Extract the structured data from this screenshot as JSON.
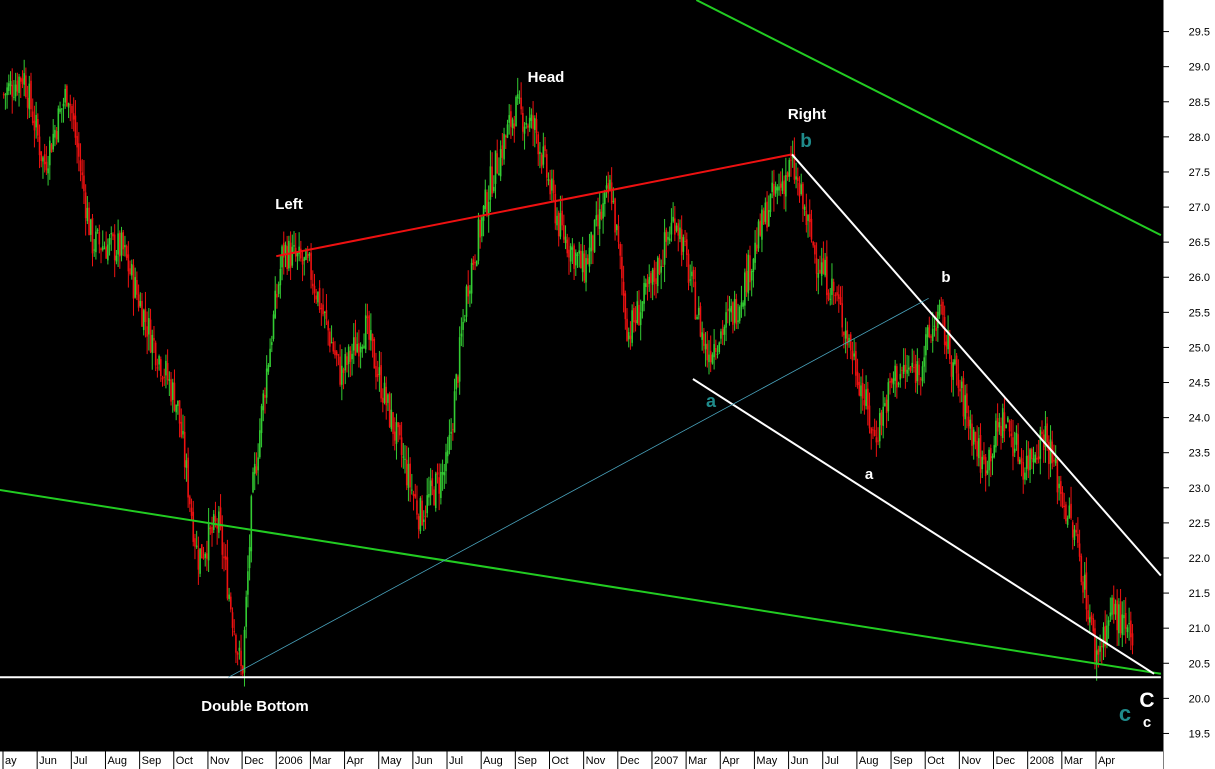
{
  "chart_data": {
    "type": "candlestick",
    "title": "",
    "ylabel": "",
    "ylim": [
      19.25,
      29.95
    ],
    "y_ticks": [
      "29.5",
      "29.0",
      "28.5",
      "28.0",
      "27.5",
      "27.0",
      "26.5",
      "26.0",
      "25.5",
      "25.0",
      "24.5",
      "24.0",
      "23.5",
      "23.0",
      "22.5",
      "22.0",
      "21.5",
      "21.0",
      "20.5",
      "20.0",
      "19.5"
    ],
    "x_ticks": [
      "ay",
      "Jun",
      "Jul",
      "Aug",
      "Sep",
      "Oct",
      "Nov",
      "Dec",
      "2006",
      "Mar",
      "Apr",
      "May",
      "Jun",
      "Jul",
      "Aug",
      "Sep",
      "Oct",
      "Nov",
      "Dec",
      "2007",
      "Mar",
      "Apr",
      "May",
      "Jun",
      "Jul",
      "Aug",
      "Sep",
      "Oct",
      "Nov",
      "Dec",
      "2008",
      "Mar",
      "Apr"
    ],
    "grid": false,
    "price_path": [
      {
        "t": 0,
        "p": 28.6
      },
      {
        "t": 0.6,
        "p": 28.9
      },
      {
        "t": 1.2,
        "p": 27.6
      },
      {
        "t": 1.9,
        "p": 28.7
      },
      {
        "t": 2.6,
        "p": 26.5
      },
      {
        "t": 3.5,
        "p": 26.4
      },
      {
        "t": 4.3,
        "p": 25.2
      },
      {
        "t": 5.1,
        "p": 24.2
      },
      {
        "t": 5.7,
        "p": 22.0
      },
      {
        "t": 6.3,
        "p": 22.5
      },
      {
        "t": 7.0,
        "p": 20.3
      },
      {
        "t": 7.3,
        "p": 22.9
      },
      {
        "t": 7.7,
        "p": 24.6
      },
      {
        "t": 8.2,
        "p": 26.4
      },
      {
        "t": 9.0,
        "p": 26.1
      },
      {
        "t": 9.9,
        "p": 24.6
      },
      {
        "t": 10.6,
        "p": 25.3
      },
      {
        "t": 11.4,
        "p": 23.9
      },
      {
        "t": 12.2,
        "p": 22.6
      },
      {
        "t": 13.0,
        "p": 23.3
      },
      {
        "t": 13.6,
        "p": 25.9
      },
      {
        "t": 14.3,
        "p": 27.4
      },
      {
        "t": 15.0,
        "p": 28.4
      },
      {
        "t": 15.6,
        "p": 28.1
      },
      {
        "t": 16.3,
        "p": 26.7
      },
      {
        "t": 17.0,
        "p": 26.1
      },
      {
        "t": 17.8,
        "p": 27.3
      },
      {
        "t": 18.3,
        "p": 25.2
      },
      {
        "t": 19.0,
        "p": 25.9
      },
      {
        "t": 19.7,
        "p": 26.9
      },
      {
        "t": 20.6,
        "p": 24.9
      },
      {
        "t": 21.5,
        "p": 25.6
      },
      {
        "t": 22.4,
        "p": 27.0
      },
      {
        "t": 23.1,
        "p": 27.6
      },
      {
        "t": 23.8,
        "p": 26.3
      },
      {
        "t": 24.4,
        "p": 25.7
      },
      {
        "t": 25.0,
        "p": 24.7
      },
      {
        "t": 25.5,
        "p": 23.7
      },
      {
        "t": 26.1,
        "p": 24.6
      },
      {
        "t": 26.8,
        "p": 24.7
      },
      {
        "t": 27.4,
        "p": 25.5
      },
      {
        "t": 28.0,
        "p": 24.4
      },
      {
        "t": 28.7,
        "p": 23.3
      },
      {
        "t": 29.3,
        "p": 24.0
      },
      {
        "t": 29.9,
        "p": 23.3
      },
      {
        "t": 30.5,
        "p": 23.8
      },
      {
        "t": 31.0,
        "p": 22.9
      },
      {
        "t": 31.5,
        "p": 22.1
      },
      {
        "t": 32.0,
        "p": 20.6
      },
      {
        "t": 32.5,
        "p": 21.3
      },
      {
        "t": 33.1,
        "p": 20.7
      }
    ],
    "trendlines": [
      {
        "name": "upper-channel",
        "color": "#22cc22",
        "from": {
          "t": 20.3,
          "p": 29.95
        },
        "to": {
          "t": 33.9,
          "p": 26.6
        }
      },
      {
        "name": "lower-channel",
        "color": "#22cc22",
        "from": {
          "t": -0.1,
          "p": 22.97
        },
        "to": {
          "t": 33.9,
          "p": 20.35
        }
      },
      {
        "name": "neckline",
        "color": "#ee1111",
        "from": {
          "t": 8.0,
          "p": 26.3
        },
        "to": {
          "t": 23.1,
          "p": 27.75
        }
      },
      {
        "name": "wedge-top",
        "color": "#ffffff",
        "from": {
          "t": 23.1,
          "p": 27.75
        },
        "to": {
          "t": 33.9,
          "p": 21.75
        }
      },
      {
        "name": "wedge-bottom",
        "color": "#ffffff",
        "from": {
          "t": 20.2,
          "p": 24.55
        },
        "to": {
          "t": 33.7,
          "p": 20.35
        }
      },
      {
        "name": "support",
        "color": "#ffffff",
        "from": {
          "t": -0.1,
          "p": 20.3
        },
        "to": {
          "t": 33.9,
          "p": 20.3
        }
      },
      {
        "name": "thin-trend",
        "color": "#4aa6c0",
        "from": {
          "t": 6.6,
          "p": 20.3
        },
        "to": {
          "t": 27.1,
          "p": 25.7
        }
      }
    ],
    "annotations": {
      "head": "Head",
      "left": "Left",
      "right": "Right",
      "double_bottom": "Double Bottom",
      "wave_b_teal": "b",
      "wave_a_teal": "a",
      "wave_c_teal": "c",
      "wave_b_white": "b",
      "wave_a_white": "a",
      "wave_C_white": "C",
      "wave_c_white": "c"
    },
    "colors": {
      "background": "#000000",
      "axis_panel": "#ffffff",
      "up_candle": "#33cc33",
      "down_candle": "#ee1111",
      "label_teal": "#1f8a8a",
      "label_white": "#ffffff"
    }
  }
}
